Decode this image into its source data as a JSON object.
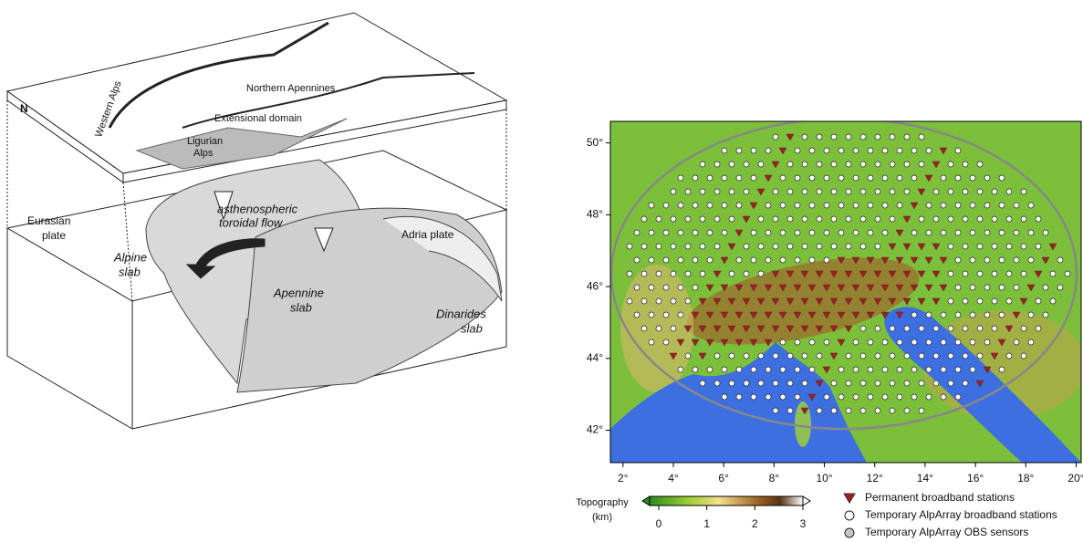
{
  "diagram": {
    "north": "N",
    "labels": {
      "northern_apennines": "Northern Apennines",
      "extensional_domain": "Extensional domain",
      "western_alps": "Western Alps",
      "ligurian": "Ligurian",
      "alps": "Alps",
      "flow_1": "asthenospheric",
      "flow_2": "toroidal flow",
      "eurasian": "Eurasian",
      "plate_1": "plate",
      "adria": "Adria plate",
      "alpine": "Alpine",
      "slab_1": "slab",
      "apennine": "Apennine",
      "slab_2": "slab",
      "dinarides": "Dinarides",
      "slab_3": "slab"
    }
  },
  "map": {
    "lon_range": [
      1.5,
      20.2
    ],
    "lat_range": [
      41.1,
      50.6
    ],
    "lon_ticks": [
      {
        "value": 2,
        "label": "2°"
      },
      {
        "value": 4,
        "label": "4°"
      },
      {
        "value": 6,
        "label": "6°"
      },
      {
        "value": 8,
        "label": "8°"
      },
      {
        "value": 10,
        "label": "10°"
      },
      {
        "value": 12,
        "label": "12°"
      },
      {
        "value": 14,
        "label": "14°"
      },
      {
        "value": 16,
        "label": "16°"
      },
      {
        "value": 18,
        "label": "18°"
      },
      {
        "value": 20,
        "label": "20°"
      }
    ],
    "lat_ticks": [
      {
        "value": 42,
        "label": "42°"
      },
      {
        "value": 44,
        "label": "44°"
      },
      {
        "value": 46,
        "label": "46°"
      },
      {
        "value": 48,
        "label": "48°"
      },
      {
        "value": 50,
        "label": "50°"
      }
    ],
    "colorbar": {
      "title_1": "Topography",
      "title_2": "(km)",
      "ticks": [
        0,
        1,
        2,
        3
      ]
    },
    "legend": [
      {
        "label": "Permanent broadband stations",
        "color": "#a81c1c"
      },
      {
        "label": "Temporary AlpArray broadband stations",
        "color": "#ffffff"
      },
      {
        "label": "Temporary AlpArray OBS sensors",
        "color": "#c8c8c8"
      }
    ]
  }
}
